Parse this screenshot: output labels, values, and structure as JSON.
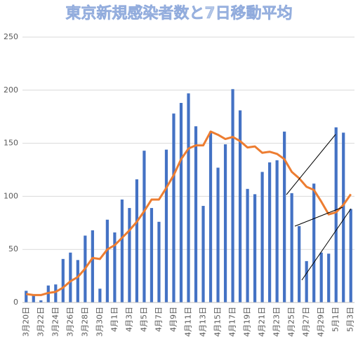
{
  "chart_data": {
    "type": "bar_line",
    "title": "東京新規感染者数と7日移動平均",
    "categories": [
      "3月20日",
      null,
      "3月22日",
      null,
      "3月24日",
      null,
      "3月26日",
      null,
      "3月28日",
      null,
      "3月30日",
      null,
      "4月1日",
      null,
      "4月3日",
      null,
      "4月5日",
      null,
      "4月7日",
      null,
      "4月9日",
      null,
      "4月11日",
      null,
      "4月13日",
      null,
      "4月15日",
      null,
      "4月17日",
      null,
      "4月19日",
      null,
      "4月21日",
      null,
      "4月23日",
      null,
      "4月25日",
      null,
      "4月27日",
      null,
      "4月29日",
      null,
      "5月1日",
      null,
      "5月3日"
    ],
    "series": [
      {
        "kind": "bar",
        "color": "#4472c4",
        "values": [
          11,
          7,
          2,
          16,
          17,
          41,
          47,
          40,
          63,
          68,
          13,
          78,
          66,
          97,
          89,
          116,
          143,
          89,
          76,
          144,
          178,
          188,
          197,
          166,
          91,
          161,
          127,
          149,
          201,
          181,
          107,
          102,
          123,
          132,
          134,
          161,
          103,
          72,
          39,
          112,
          47,
          46,
          165,
          160,
          88
        ]
      },
      {
        "kind": "line",
        "color": "#ed7d31",
        "values": [
          8,
          7,
          7,
          9,
          10,
          14,
          20,
          24,
          32,
          42,
          41,
          50,
          54,
          61,
          68,
          76,
          86,
          97,
          97,
          108,
          120,
          135,
          145,
          148,
          148,
          161,
          158,
          154,
          156,
          152,
          146,
          147,
          141,
          142,
          140,
          135,
          123,
          117,
          109,
          106,
          95,
          83,
          85,
          92,
          102
        ]
      }
    ],
    "ylim": [
      0,
      250
    ],
    "yticks": [
      0,
      50,
      100,
      150,
      200,
      250
    ],
    "grid": true
  }
}
